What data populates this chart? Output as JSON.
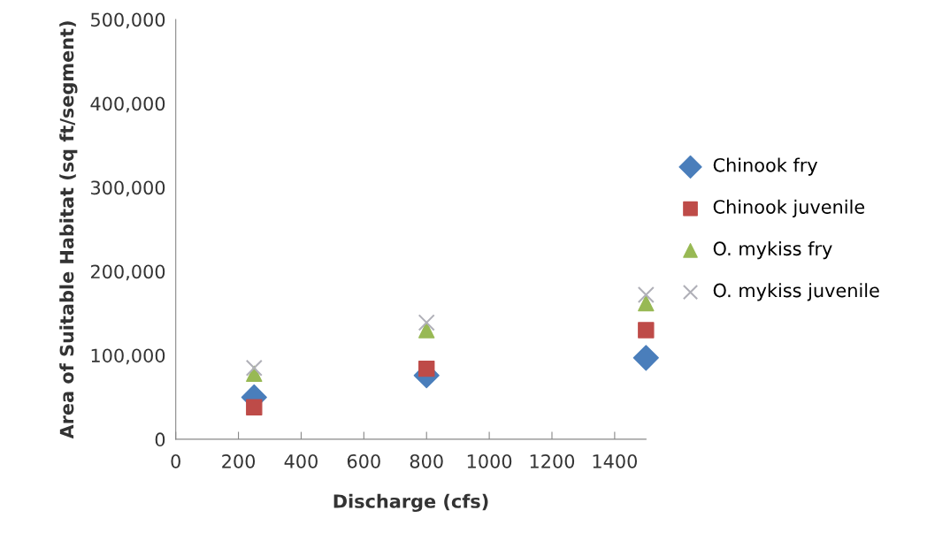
{
  "chart_data": {
    "type": "scatter",
    "xlabel": "Discharge (cfs)",
    "ylabel": "Area of Suitable Habitat (sq ft/segment)",
    "xlim": [
      0,
      1500
    ],
    "xticks": [
      0,
      200,
      400,
      600,
      800,
      1000,
      1200,
      1400
    ],
    "ylim": [
      0,
      500000
    ],
    "yticks": [
      {
        "value": 0,
        "label": "0"
      },
      {
        "value": 100000,
        "label": "100,000"
      },
      {
        "value": 200000,
        "label": "200,000"
      },
      {
        "value": 300000,
        "label": "300,000"
      },
      {
        "value": 400000,
        "label": "400,000"
      },
      {
        "value": 500000,
        "label": "500,000"
      }
    ],
    "grid": false,
    "legend": "right",
    "series": [
      {
        "name": "Chinook fry",
        "color": "#4a7ebb",
        "marker": "diamond",
        "x": [
          250,
          800,
          1500
        ],
        "values": [
          50000,
          76000,
          97000
        ]
      },
      {
        "name": "Chinook juvenile",
        "color": "#be4b48",
        "marker": "square",
        "x": [
          250,
          800,
          1500
        ],
        "values": [
          38000,
          84000,
          130000
        ]
      },
      {
        "name": "O. mykiss fry",
        "color": "#98b954",
        "marker": "triangle",
        "x": [
          250,
          800,
          1500
        ],
        "values": [
          78000,
          130000,
          162000
        ]
      },
      {
        "name": "O. mykiss juvenile",
        "color": "#b0b0b8",
        "marker": "cross",
        "x": [
          250,
          800,
          1500
        ],
        "values": [
          85000,
          139000,
          172000
        ]
      }
    ]
  }
}
